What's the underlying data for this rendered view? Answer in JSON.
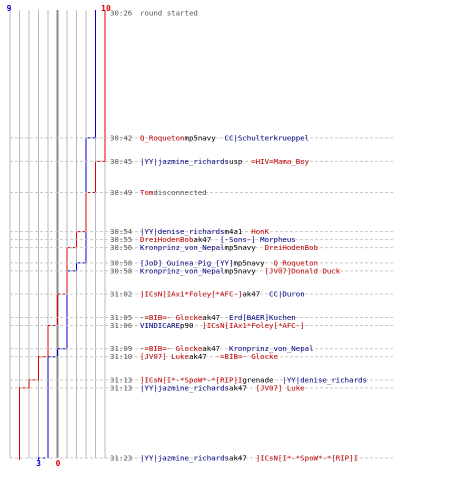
{
  "chart_data": {
    "type": "line",
    "colors": {
      "red": "#dd0000",
      "blue": "#0000cc",
      "grid": "#b8b8b8",
      "grid_dark": "#888888"
    },
    "start_counts": {
      "blue": "9",
      "red": "10"
    },
    "end_counts": {
      "blue": "3",
      "red": "0"
    },
    "players_per_team": 10,
    "series": [
      {
        "color": "blue",
        "values": [
          9,
          8,
          8,
          8,
          8,
          8,
          8,
          7,
          6,
          6,
          6,
          6,
          5,
          4,
          4,
          4,
          3,
          3
        ]
      },
      {
        "color": "red",
        "values": [
          10,
          10,
          9,
          8,
          7,
          7,
          6,
          6,
          6,
          5,
          5,
          4,
          4,
          3,
          2,
          1,
          1,
          0
        ]
      }
    ],
    "events": [
      {
        "time": "30:26",
        "parts": [
          {
            "t": "round started",
            "c": "neutral"
          }
        ]
      },
      {
        "time": "30:42",
        "parts": [
          {
            "t": "Q_Roqueton",
            "c": "red"
          },
          {
            "t": " mp5navy ",
            "c": "plain"
          },
          {
            "t": "CC|Schulterkrueppel",
            "c": "blue"
          }
        ]
      },
      {
        "time": "30:45",
        "parts": [
          {
            "t": "|YY|jazmine_richards",
            "c": "blue"
          },
          {
            "t": " usp ",
            "c": "plain"
          },
          {
            "t": "=HIV=Mama_Boy",
            "c": "red"
          }
        ]
      },
      {
        "time": "30:49",
        "parts": [
          {
            "t": "Tom",
            "c": "red"
          },
          {
            "t": " disconnected",
            "c": "neutral"
          }
        ]
      },
      {
        "time": "30:54",
        "parts": [
          {
            "t": "|YY|denise_richards",
            "c": "blue"
          },
          {
            "t": " m4a1 ",
            "c": "plain"
          },
          {
            "t": "HonK",
            "c": "red"
          }
        ]
      },
      {
        "time": "30:55",
        "parts": [
          {
            "t": "DreiHodenBob",
            "c": "red"
          },
          {
            "t": " ak47 ",
            "c": "plain"
          },
          {
            "t": "[-Sons-] Morpheus",
            "c": "blue"
          }
        ]
      },
      {
        "time": "30:56",
        "parts": [
          {
            "t": "Kronprinz_von_Nepal",
            "c": "blue"
          },
          {
            "t": " mp5navy ",
            "c": "plain"
          },
          {
            "t": "DreiHodenBob",
            "c": "red"
          }
        ]
      },
      {
        "time": "30:58",
        "parts": [
          {
            "t": "[JoD]_Guinea_Pig_[YY]",
            "c": "blue"
          },
          {
            "t": " mp5navy ",
            "c": "plain"
          },
          {
            "t": "Q_Roqueton",
            "c": "red"
          }
        ]
      },
      {
        "time": "30:58",
        "parts": [
          {
            "t": "Kronprinz_von_Nepal",
            "c": "blue"
          },
          {
            "t": " mp5navy ",
            "c": "plain"
          },
          {
            "t": "[JV07]Donald Duck",
            "c": "red"
          }
        ]
      },
      {
        "time": "31:02",
        "parts": [
          {
            "t": "]ICsN[IAx1*Foley[*AFC-]",
            "c": "red"
          },
          {
            "t": " ak47 ",
            "c": "plain"
          },
          {
            "t": "CC|Duron",
            "c": "blue"
          }
        ]
      },
      {
        "time": "31:05",
        "parts": [
          {
            "t": "-=BIB=- Glocke",
            "c": "red"
          },
          {
            "t": " ak47 ",
            "c": "plain"
          },
          {
            "t": "Erd[BAER]Kuchen",
            "c": "blue"
          }
        ]
      },
      {
        "time": "31:06",
        "parts": [
          {
            "t": "VINDICARE",
            "c": "blue"
          },
          {
            "t": " p90 ",
            "c": "plain"
          },
          {
            "t": "]ICsN[IAx1*Foley[*AFC-]",
            "c": "red"
          }
        ]
      },
      {
        "time": "31:09",
        "parts": [
          {
            "t": "-=BIB=- Glocke",
            "c": "red"
          },
          {
            "t": " ak47 ",
            "c": "plain"
          },
          {
            "t": "Kronprinz_von_Nepal",
            "c": "blue"
          }
        ]
      },
      {
        "time": "31:10",
        "parts": [
          {
            "t": "[JV07] Luke",
            "c": "red"
          },
          {
            "t": " ak47 ",
            "c": "plain"
          },
          {
            "t": "-=BIB=- Glocke",
            "c": "red"
          }
        ]
      },
      {
        "time": "31:13",
        "parts": [
          {
            "t": "]ICsN[I*-*SpoW*-*[RIP]I",
            "c": "red"
          },
          {
            "t": " grenade ",
            "c": "plain"
          },
          {
            "t": "|YY|denise_richards",
            "c": "blue"
          }
        ]
      },
      {
        "time": "31:13",
        "parts": [
          {
            "t": "|YY|jazmine_richards",
            "c": "blue"
          },
          {
            "t": " ak47 ",
            "c": "plain"
          },
          {
            "t": "[JV07] Luke",
            "c": "red"
          }
        ]
      },
      {
        "time": "31:23",
        "parts": [
          {
            "t": "|YY|jazmine_richards",
            "c": "blue"
          },
          {
            "t": " ak47 ",
            "c": "plain"
          },
          {
            "t": "]ICsN[I*-*SpoW*-*[RIP]I",
            "c": "red"
          }
        ]
      }
    ]
  }
}
